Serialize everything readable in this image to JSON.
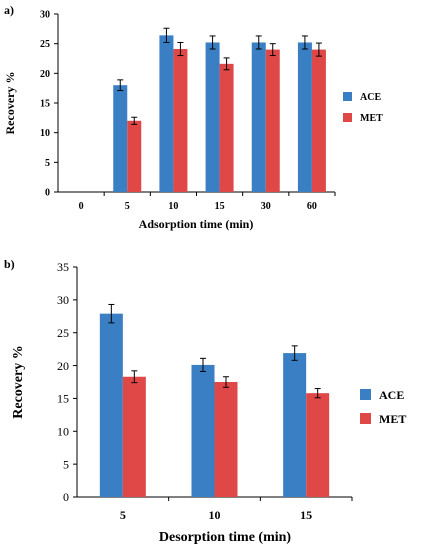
{
  "chart_data": [
    {
      "type": "bar",
      "panel_label": "a)",
      "categories": [
        "0",
        "5",
        "10",
        "15",
        "30",
        "60"
      ],
      "series": [
        {
          "name": "ACE",
          "color": "#3a7fc4",
          "values": [
            null,
            18.0,
            26.4,
            25.2,
            25.2,
            25.2
          ],
          "errors": [
            null,
            0.9,
            1.2,
            1.1,
            1.1,
            1.1
          ]
        },
        {
          "name": "MET",
          "color": "#e04848",
          "values": [
            null,
            12.0,
            24.1,
            21.6,
            24.0,
            24.0
          ],
          "errors": [
            null,
            0.6,
            1.1,
            1.0,
            1.0,
            1.1
          ]
        }
      ],
      "xlabel": "Adsorption time (min)",
      "ylabel": "Recovery %",
      "ylim": [
        0,
        30
      ],
      "yticks": [
        "0",
        "5",
        "10",
        "15",
        "20",
        "25",
        "30"
      ],
      "legend": "right",
      "grid": false
    },
    {
      "type": "bar",
      "panel_label": "b)",
      "categories": [
        "5",
        "10",
        "15"
      ],
      "series": [
        {
          "name": "ACE",
          "color": "#3a7fc4",
          "values": [
            27.9,
            20.1,
            21.9
          ],
          "errors": [
            1.4,
            1.0,
            1.1
          ]
        },
        {
          "name": "MET",
          "color": "#e04848",
          "values": [
            18.3,
            17.5,
            15.8
          ],
          "errors": [
            0.9,
            0.8,
            0.7
          ]
        }
      ],
      "xlabel": "Desorption time (min)",
      "ylabel": "Recovery %",
      "ylim": [
        0,
        35
      ],
      "yticks": [
        "0",
        "5",
        "10",
        "15",
        "20",
        "25",
        "30",
        "35"
      ],
      "legend": "right",
      "grid": false
    }
  ]
}
